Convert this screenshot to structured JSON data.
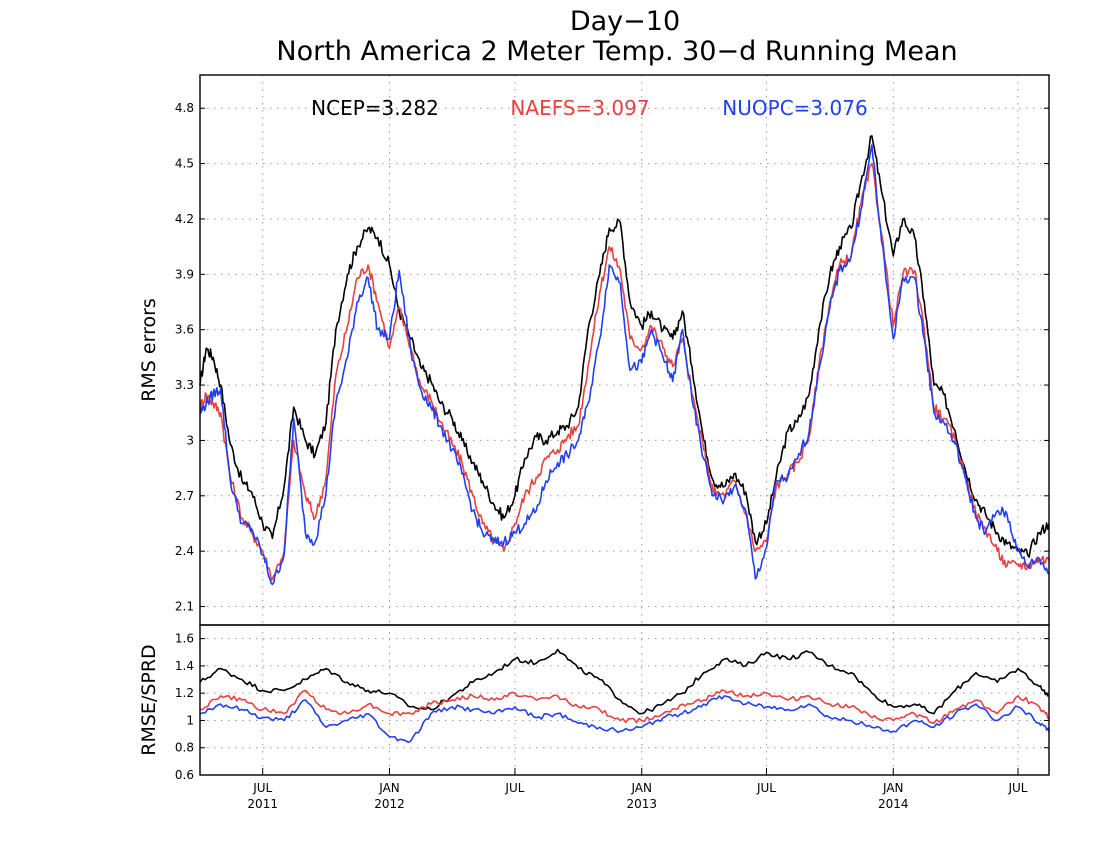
{
  "title": {
    "line1": "Day−10",
    "line2": "North America 2 Meter Temp. 30−d Running Mean"
  },
  "chart_data": [
    {
      "type": "line",
      "ylabel": "RMS errors",
      "ylim": [
        2.0,
        4.98
      ],
      "yticks": [
        2.1,
        2.4,
        2.7,
        3,
        3.3,
        3.6,
        3.9,
        4.2,
        4.5,
        4.8
      ],
      "grid": true,
      "legend": [
        {
          "label": "NCEP=3.282",
          "color": "#000000"
        },
        {
          "label": "NAEFS=3.097",
          "color": "#e8413f"
        },
        {
          "label": "NUOPC=3.076",
          "color": "#2040f0"
        }
      ],
      "series": [
        {
          "color": "#000000",
          "x": [
            "2011-04-01",
            "2011-04-10",
            "2011-04-20",
            "2011-05-01",
            "2011-05-15",
            "2011-06-01",
            "2011-06-15",
            "2011-07-01",
            "2011-07-15",
            "2011-08-01",
            "2011-08-15",
            "2011-09-01",
            "2011-09-15",
            "2011-10-01",
            "2011-10-15",
            "2011-11-01",
            "2011-11-15",
            "2011-12-01",
            "2011-12-15",
            "2012-01-01",
            "2012-01-15",
            "2012-02-01",
            "2012-02-15",
            "2012-03-01",
            "2012-03-15",
            "2012-04-01",
            "2012-04-15",
            "2012-05-01",
            "2012-05-15",
            "2012-06-01",
            "2012-06-15",
            "2012-07-01",
            "2012-07-15",
            "2012-08-01",
            "2012-08-15",
            "2012-09-01",
            "2012-09-15",
            "2012-10-01",
            "2012-10-15",
            "2012-11-01",
            "2012-11-15",
            "2012-12-01",
            "2012-12-15",
            "2013-01-01",
            "2013-01-15",
            "2013-02-01",
            "2013-02-15",
            "2013-03-01",
            "2013-03-15",
            "2013-04-01",
            "2013-04-15",
            "2013-05-01",
            "2013-05-15",
            "2013-06-01",
            "2013-06-15",
            "2013-07-01",
            "2013-07-15",
            "2013-08-01",
            "2013-08-15",
            "2013-09-01",
            "2013-09-15",
            "2013-10-01",
            "2013-10-15",
            "2013-11-01",
            "2013-11-15",
            "2013-12-01",
            "2013-12-15",
            "2014-01-01",
            "2014-01-15",
            "2014-02-01",
            "2014-02-15",
            "2014-03-01",
            "2014-03-15",
            "2014-04-01",
            "2014-04-15",
            "2014-05-01",
            "2014-05-15",
            "2014-06-01",
            "2014-06-15",
            "2014-07-01",
            "2014-07-15",
            "2014-08-01",
            "2014-08-15"
          ],
          "values": [
            3.3,
            3.5,
            3.45,
            3.3,
            2.98,
            2.78,
            2.72,
            2.55,
            2.47,
            2.75,
            3.18,
            3.0,
            2.92,
            3.1,
            3.6,
            3.9,
            4.05,
            4.15,
            4.1,
            3.95,
            3.7,
            3.55,
            3.4,
            3.32,
            3.2,
            3.12,
            3.0,
            2.88,
            2.78,
            2.65,
            2.58,
            2.7,
            2.9,
            3.02,
            3.0,
            3.05,
            3.08,
            3.18,
            3.6,
            3.9,
            4.15,
            4.18,
            3.75,
            3.62,
            3.7,
            3.6,
            3.55,
            3.7,
            3.4,
            3.0,
            2.78,
            2.75,
            2.82,
            2.72,
            2.45,
            2.55,
            2.8,
            3.05,
            3.1,
            3.25,
            3.6,
            3.9,
            4.05,
            4.15,
            4.4,
            4.65,
            4.35,
            4.0,
            4.2,
            4.1,
            3.75,
            3.3,
            3.25,
            3.05,
            2.85,
            2.68,
            2.6,
            2.5,
            2.44,
            2.4,
            2.38,
            2.5,
            2.55
          ]
        },
        {
          "color": "#e8413f",
          "x": [
            "2011-04-01",
            "2011-04-10",
            "2011-04-20",
            "2011-05-01",
            "2011-05-15",
            "2011-06-01",
            "2011-06-15",
            "2011-07-01",
            "2011-07-15",
            "2011-08-01",
            "2011-08-15",
            "2011-09-01",
            "2011-09-15",
            "2011-10-01",
            "2011-10-15",
            "2011-11-01",
            "2011-11-15",
            "2011-12-01",
            "2011-12-15",
            "2012-01-01",
            "2012-01-15",
            "2012-02-01",
            "2012-02-15",
            "2012-03-01",
            "2012-03-15",
            "2012-04-01",
            "2012-04-15",
            "2012-05-01",
            "2012-05-15",
            "2012-06-01",
            "2012-06-15",
            "2012-07-01",
            "2012-07-15",
            "2012-08-01",
            "2012-08-15",
            "2012-09-01",
            "2012-09-15",
            "2012-10-01",
            "2012-10-15",
            "2012-11-01",
            "2012-11-15",
            "2012-12-01",
            "2012-12-15",
            "2013-01-01",
            "2013-01-15",
            "2013-02-01",
            "2013-02-15",
            "2013-03-01",
            "2013-03-15",
            "2013-04-01",
            "2013-04-15",
            "2013-05-01",
            "2013-05-15",
            "2013-06-01",
            "2013-06-15",
            "2013-07-01",
            "2013-07-15",
            "2013-08-01",
            "2013-08-15",
            "2013-09-01",
            "2013-09-15",
            "2013-10-01",
            "2013-10-15",
            "2013-11-01",
            "2013-11-15",
            "2013-12-01",
            "2013-12-15",
            "2014-01-01",
            "2014-01-15",
            "2014-02-01",
            "2014-02-15",
            "2014-03-01",
            "2014-03-15",
            "2014-04-01",
            "2014-04-15",
            "2014-05-01",
            "2014-05-15",
            "2014-06-01",
            "2014-06-15",
            "2014-07-01",
            "2014-07-15",
            "2014-08-01",
            "2014-08-15"
          ],
          "values": [
            3.18,
            3.25,
            3.2,
            3.15,
            2.8,
            2.58,
            2.5,
            2.4,
            2.25,
            2.4,
            3.0,
            2.7,
            2.58,
            2.8,
            3.35,
            3.62,
            3.88,
            3.95,
            3.75,
            3.5,
            3.72,
            3.5,
            3.3,
            3.22,
            3.1,
            2.98,
            2.88,
            2.7,
            2.55,
            2.45,
            2.4,
            2.55,
            2.7,
            2.8,
            2.9,
            2.95,
            3.02,
            3.08,
            3.4,
            3.8,
            4.05,
            3.92,
            3.55,
            3.5,
            3.62,
            3.5,
            3.4,
            3.55,
            3.25,
            2.95,
            2.72,
            2.7,
            2.78,
            2.6,
            2.4,
            2.45,
            2.75,
            2.82,
            2.88,
            3.02,
            3.4,
            3.75,
            3.95,
            4.0,
            4.28,
            4.5,
            4.12,
            3.62,
            3.9,
            3.92,
            3.6,
            3.18,
            3.12,
            3.0,
            2.82,
            2.6,
            2.52,
            2.4,
            2.32,
            2.33,
            2.32,
            2.36,
            2.35
          ]
        },
        {
          "color": "#2040f0",
          "x": [
            "2011-04-01",
            "2011-04-10",
            "2011-04-20",
            "2011-05-01",
            "2011-05-15",
            "2011-06-01",
            "2011-06-15",
            "2011-07-01",
            "2011-07-15",
            "2011-08-01",
            "2011-08-15",
            "2011-09-01",
            "2011-09-15",
            "2011-10-01",
            "2011-10-15",
            "2011-11-01",
            "2011-11-15",
            "2011-12-01",
            "2011-12-15",
            "2012-01-01",
            "2012-01-15",
            "2012-02-01",
            "2012-02-15",
            "2012-03-01",
            "2012-03-15",
            "2012-04-01",
            "2012-04-15",
            "2012-05-01",
            "2012-05-15",
            "2012-06-01",
            "2012-06-15",
            "2012-07-01",
            "2012-07-15",
            "2012-08-01",
            "2012-08-15",
            "2012-09-01",
            "2012-09-15",
            "2012-10-01",
            "2012-10-15",
            "2012-11-01",
            "2012-11-15",
            "2012-12-01",
            "2012-12-15",
            "2013-01-01",
            "2013-01-15",
            "2013-02-01",
            "2013-02-15",
            "2013-03-01",
            "2013-03-15",
            "2013-04-01",
            "2013-04-15",
            "2013-05-01",
            "2013-05-15",
            "2013-06-01",
            "2013-06-15",
            "2013-07-01",
            "2013-07-15",
            "2013-08-01",
            "2013-08-15",
            "2013-09-01",
            "2013-09-15",
            "2013-10-01",
            "2013-10-15",
            "2013-11-01",
            "2013-11-15",
            "2013-12-01",
            "2013-12-15",
            "2014-01-01",
            "2014-01-15",
            "2014-02-01",
            "2014-02-15",
            "2014-03-01",
            "2014-03-15",
            "2014-04-01",
            "2014-04-15",
            "2014-05-01",
            "2014-05-15",
            "2014-06-01",
            "2014-06-15",
            "2014-07-01",
            "2014-07-15",
            "2014-08-01",
            "2014-08-15"
          ],
          "values": [
            3.15,
            3.2,
            3.25,
            3.28,
            2.78,
            2.55,
            2.52,
            2.38,
            2.22,
            2.38,
            3.12,
            2.5,
            2.45,
            2.72,
            3.2,
            3.45,
            3.75,
            3.88,
            3.6,
            3.55,
            3.92,
            3.48,
            3.28,
            3.18,
            3.08,
            2.95,
            2.82,
            2.62,
            2.5,
            2.45,
            2.45,
            2.5,
            2.55,
            2.62,
            2.78,
            2.88,
            2.92,
            3.0,
            3.2,
            3.55,
            3.95,
            3.85,
            3.38,
            3.42,
            3.6,
            3.45,
            3.32,
            3.6,
            3.22,
            2.9,
            2.7,
            2.68,
            2.75,
            2.62,
            2.25,
            2.42,
            2.78,
            2.8,
            2.9,
            3.05,
            3.38,
            3.72,
            3.92,
            4.0,
            4.25,
            4.6,
            4.08,
            3.55,
            3.88,
            3.88,
            3.55,
            3.15,
            3.1,
            2.98,
            2.8,
            2.58,
            2.5,
            2.62,
            2.6,
            2.4,
            2.32,
            2.36,
            2.28
          ]
        }
      ]
    },
    {
      "type": "line",
      "ylabel": "RMSE/SPRD",
      "ylim": [
        0.6,
        1.7
      ],
      "yticks": [
        0.6,
        0.8,
        1,
        1.2,
        1.4,
        1.6
      ],
      "grid": true,
      "series": [
        {
          "color": "#000000",
          "x": [
            "2011-04-01",
            "2011-05-01",
            "2011-06-01",
            "2011-07-01",
            "2011-08-01",
            "2011-09-01",
            "2011-10-01",
            "2011-11-01",
            "2011-12-01",
            "2012-01-01",
            "2012-02-01",
            "2012-03-01",
            "2012-04-01",
            "2012-05-01",
            "2012-06-01",
            "2012-07-01",
            "2012-08-01",
            "2012-09-01",
            "2012-10-01",
            "2012-11-01",
            "2012-12-01",
            "2013-01-01",
            "2013-02-01",
            "2013-03-01",
            "2013-04-01",
            "2013-05-01",
            "2013-06-01",
            "2013-07-01",
            "2013-08-01",
            "2013-09-01",
            "2013-10-01",
            "2013-11-01",
            "2013-12-01",
            "2014-01-01",
            "2014-02-01",
            "2014-03-01",
            "2014-04-01",
            "2014-05-01",
            "2014-06-01",
            "2014-07-01",
            "2014-08-01",
            "2014-08-15"
          ],
          "values": [
            1.28,
            1.38,
            1.3,
            1.22,
            1.22,
            1.3,
            1.38,
            1.28,
            1.22,
            1.2,
            1.1,
            1.08,
            1.18,
            1.28,
            1.35,
            1.45,
            1.42,
            1.52,
            1.38,
            1.3,
            1.15,
            1.05,
            1.12,
            1.2,
            1.35,
            1.45,
            1.4,
            1.5,
            1.45,
            1.5,
            1.4,
            1.35,
            1.2,
            1.1,
            1.12,
            1.05,
            1.22,
            1.35,
            1.28,
            1.38,
            1.25,
            1.18
          ]
        },
        {
          "color": "#e8413f",
          "x": [
            "2011-04-01",
            "2011-05-01",
            "2011-06-01",
            "2011-07-01",
            "2011-08-01",
            "2011-09-01",
            "2011-10-01",
            "2011-11-01",
            "2011-12-01",
            "2012-01-01",
            "2012-02-01",
            "2012-03-01",
            "2012-04-01",
            "2012-05-01",
            "2012-06-01",
            "2012-07-01",
            "2012-08-01",
            "2012-09-01",
            "2012-10-01",
            "2012-11-01",
            "2012-12-01",
            "2013-01-01",
            "2013-02-01",
            "2013-03-01",
            "2013-04-01",
            "2013-05-01",
            "2013-06-01",
            "2013-07-01",
            "2013-08-01",
            "2013-09-01",
            "2013-10-01",
            "2013-11-01",
            "2013-12-01",
            "2014-01-01",
            "2014-02-01",
            "2014-03-01",
            "2014-04-01",
            "2014-05-01",
            "2014-06-01",
            "2014-07-01",
            "2014-08-01",
            "2014-08-15"
          ],
          "values": [
            1.08,
            1.18,
            1.15,
            1.08,
            1.05,
            1.22,
            1.08,
            1.05,
            1.12,
            1.05,
            1.05,
            1.12,
            1.15,
            1.18,
            1.15,
            1.2,
            1.15,
            1.18,
            1.1,
            1.08,
            1.0,
            1.0,
            1.05,
            1.12,
            1.15,
            1.22,
            1.18,
            1.2,
            1.15,
            1.18,
            1.12,
            1.1,
            1.02,
            1.0,
            1.05,
            0.98,
            1.08,
            1.15,
            1.05,
            1.18,
            1.1,
            1.02
          ]
        },
        {
          "color": "#2040f0",
          "x": [
            "2011-04-01",
            "2011-05-01",
            "2011-06-01",
            "2011-07-01",
            "2011-08-01",
            "2011-09-01",
            "2011-10-01",
            "2011-11-01",
            "2011-12-01",
            "2012-01-01",
            "2012-02-01",
            "2012-03-01",
            "2012-04-01",
            "2012-05-01",
            "2012-06-01",
            "2012-07-01",
            "2012-08-01",
            "2012-09-01",
            "2012-10-01",
            "2012-11-01",
            "2012-12-01",
            "2013-01-01",
            "2013-02-01",
            "2013-03-01",
            "2013-04-01",
            "2013-05-01",
            "2013-06-01",
            "2013-07-01",
            "2013-08-01",
            "2013-09-01",
            "2013-10-01",
            "2013-11-01",
            "2013-12-01",
            "2014-01-01",
            "2014-02-01",
            "2014-03-01",
            "2014-04-01",
            "2014-05-01",
            "2014-06-01",
            "2014-07-01",
            "2014-08-01",
            "2014-08-15"
          ],
          "values": [
            1.05,
            1.12,
            1.08,
            1.02,
            1.0,
            1.15,
            0.95,
            1.0,
            1.05,
            0.88,
            0.85,
            1.05,
            1.1,
            1.08,
            1.05,
            1.1,
            1.02,
            1.05,
            0.98,
            0.95,
            0.92,
            0.95,
            1.02,
            1.05,
            1.12,
            1.18,
            1.12,
            1.1,
            1.08,
            1.12,
            1.02,
            1.0,
            0.95,
            0.92,
            1.0,
            0.95,
            1.05,
            1.12,
            1.0,
            1.1,
            0.98,
            0.92
          ]
        }
      ]
    }
  ],
  "xaxis": {
    "ticks": [
      {
        "month": "JUL",
        "year": "2011",
        "date": "2011-07-01"
      },
      {
        "month": "JAN",
        "year": "2012",
        "date": "2012-01-01"
      },
      {
        "month": "JUL",
        "year": "",
        "date": "2012-07-01"
      },
      {
        "month": "JAN",
        "year": "2013",
        "date": "2013-01-01"
      },
      {
        "month": "JUL",
        "year": "",
        "date": "2013-07-01"
      },
      {
        "month": "JAN",
        "year": "2014",
        "date": "2014-01-01"
      },
      {
        "month": "JUL",
        "year": "",
        "date": "2014-07-01"
      }
    ],
    "xlim": [
      "2011-04-01",
      "2014-08-15"
    ]
  }
}
